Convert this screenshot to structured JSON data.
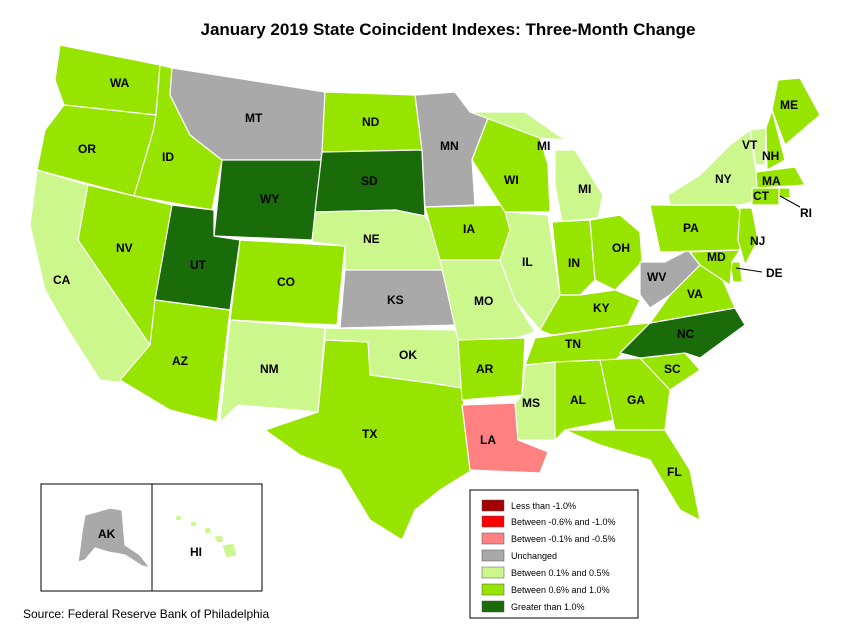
{
  "title": "January 2019 State Coincident Indexes: Three-Month Change",
  "source": "Source: Federal Reserve Bank of Philadelphia",
  "legend": [
    {
      "label": "Less than -1.0%",
      "color": "#a50000"
    },
    {
      "label": "Between -0.6% and -1.0%",
      "color": "#ff0000"
    },
    {
      "label": "Between -0.1% and -0.5%",
      "color": "#ff8080"
    },
    {
      "label": "Unchanged",
      "color": "#a9a9a9"
    },
    {
      "label": "Between 0.1% and 0.5%",
      "color": "#ccf78c"
    },
    {
      "label": "Between 0.6% and 1.0%",
      "color": "#96e400"
    },
    {
      "label": "Greater than 1.0%",
      "color": "#1a6b0a"
    }
  ],
  "states": [
    {
      "abbr": "WA",
      "cat": 5
    },
    {
      "abbr": "OR",
      "cat": 5
    },
    {
      "abbr": "CA",
      "cat": 4
    },
    {
      "abbr": "ID",
      "cat": 5
    },
    {
      "abbr": "NV",
      "cat": 5
    },
    {
      "abbr": "MT",
      "cat": 3
    },
    {
      "abbr": "WY",
      "cat": 6
    },
    {
      "abbr": "UT",
      "cat": 6
    },
    {
      "abbr": "AZ",
      "cat": 5
    },
    {
      "abbr": "CO",
      "cat": 5
    },
    {
      "abbr": "NM",
      "cat": 4
    },
    {
      "abbr": "ND",
      "cat": 5
    },
    {
      "abbr": "SD",
      "cat": 6
    },
    {
      "abbr": "NE",
      "cat": 4
    },
    {
      "abbr": "KS",
      "cat": 3
    },
    {
      "abbr": "OK",
      "cat": 4
    },
    {
      "abbr": "TX",
      "cat": 5
    },
    {
      "abbr": "MN",
      "cat": 3
    },
    {
      "abbr": "IA",
      "cat": 5
    },
    {
      "abbr": "MO",
      "cat": 4
    },
    {
      "abbr": "AR",
      "cat": 5
    },
    {
      "abbr": "LA",
      "cat": 2
    },
    {
      "abbr": "WI",
      "cat": 5
    },
    {
      "abbr": "IL",
      "cat": 4
    },
    {
      "abbr": "MI",
      "cat": 4
    },
    {
      "abbr": "IN",
      "cat": 5
    },
    {
      "abbr": "OH",
      "cat": 5
    },
    {
      "abbr": "KY",
      "cat": 5
    },
    {
      "abbr": "TN",
      "cat": 5
    },
    {
      "abbr": "MS",
      "cat": 4
    },
    {
      "abbr": "AL",
      "cat": 5
    },
    {
      "abbr": "GA",
      "cat": 5
    },
    {
      "abbr": "FL",
      "cat": 5
    },
    {
      "abbr": "SC",
      "cat": 5
    },
    {
      "abbr": "NC",
      "cat": 6
    },
    {
      "abbr": "VA",
      "cat": 5
    },
    {
      "abbr": "WV",
      "cat": 3
    },
    {
      "abbr": "PA",
      "cat": 5
    },
    {
      "abbr": "NY",
      "cat": 4
    },
    {
      "abbr": "VT",
      "cat": 4
    },
    {
      "abbr": "NH",
      "cat": 5
    },
    {
      "abbr": "ME",
      "cat": 5
    },
    {
      "abbr": "MA",
      "cat": 5
    },
    {
      "abbr": "RI",
      "cat": 5
    },
    {
      "abbr": "CT",
      "cat": 5
    },
    {
      "abbr": "NJ",
      "cat": 5
    },
    {
      "abbr": "DE",
      "cat": 5
    },
    {
      "abbr": "MD",
      "cat": 5
    },
    {
      "abbr": "AK",
      "cat": 3
    },
    {
      "abbr": "HI",
      "cat": 4
    }
  ]
}
